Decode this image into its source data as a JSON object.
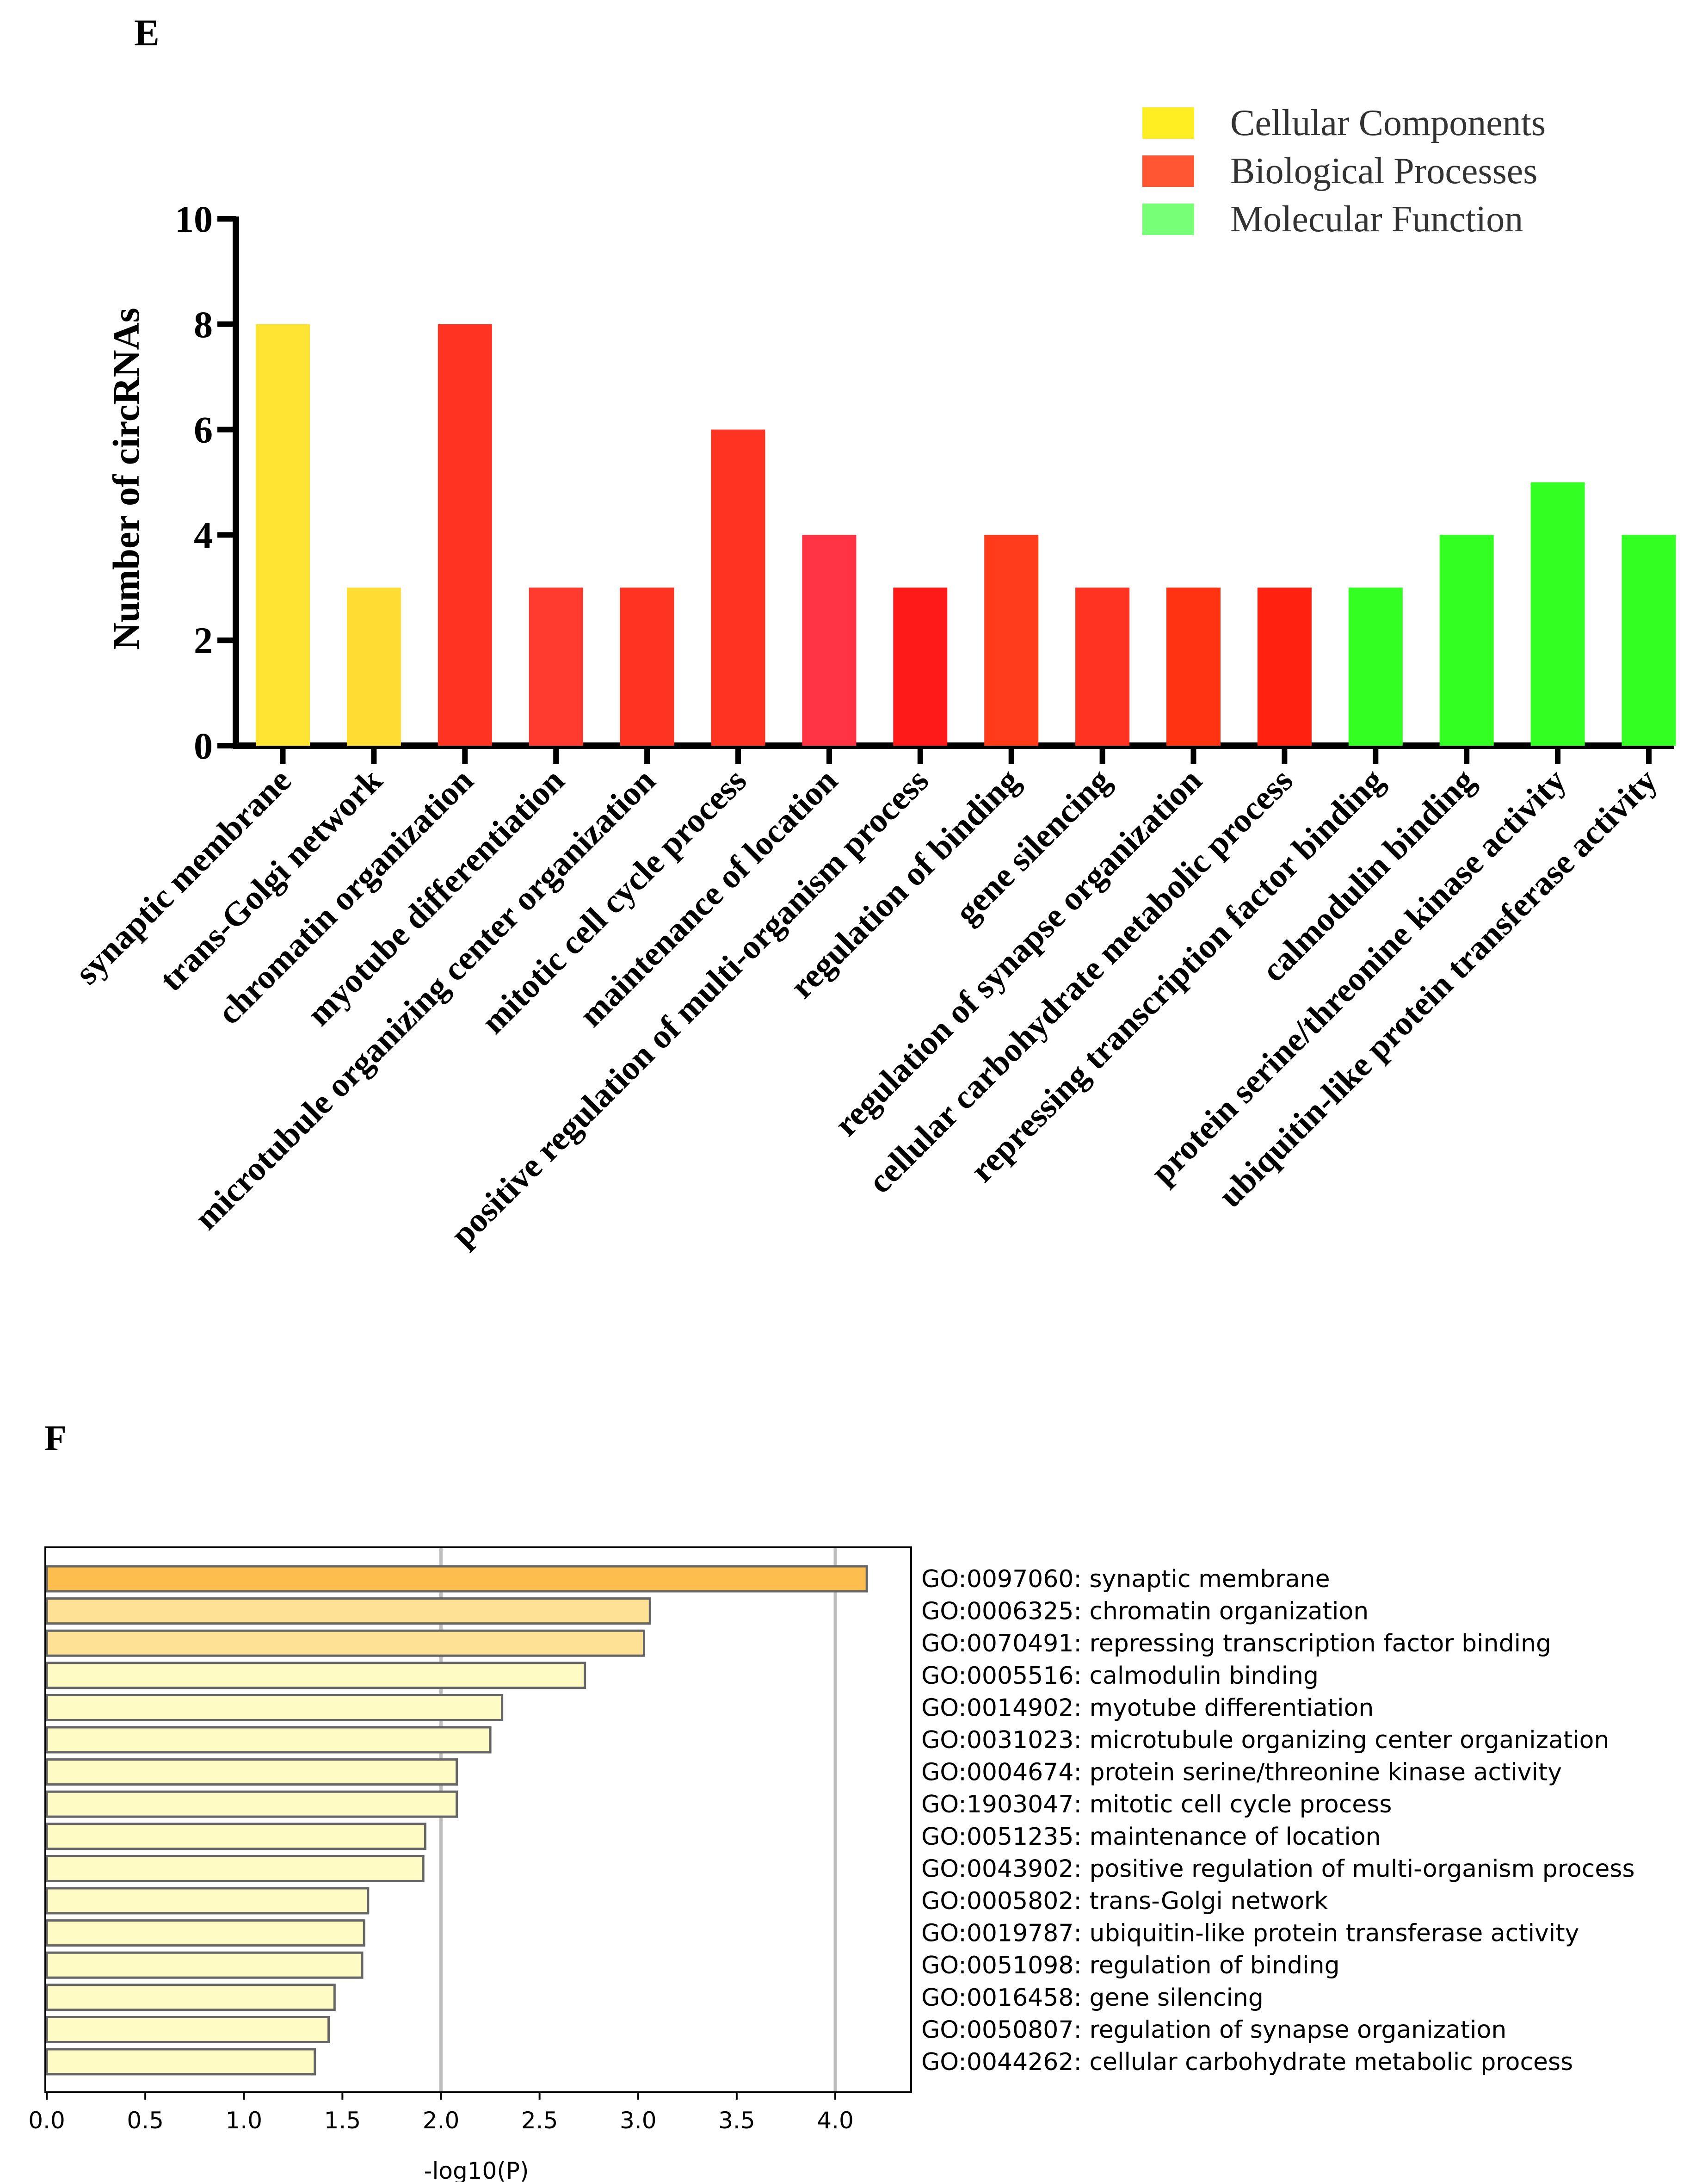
{
  "chart_data": [
    {
      "panel": "E",
      "type": "bar",
      "ylabel": "Number of circRNAs",
      "ylim": [
        0,
        10
      ],
      "yticks": [
        "0",
        "2",
        "4",
        "6",
        "8",
        "10"
      ],
      "legend": {
        "placement": "top-right",
        "items": [
          {
            "label": "Cellular Components",
            "color": "#FFEE22"
          },
          {
            "label": "Biological Processes",
            "color": "#FF5533"
          },
          {
            "label": "Molecular Function",
            "color": "#77FF77"
          }
        ]
      },
      "categories": [
        "synaptic membrane",
        "trans-Golgi network",
        "chromatin organization",
        "myotube differentiation",
        "microtubule organizing center organization",
        "mitotic cell cycle process",
        "maintenance of location",
        "positive regulation of multi-organism process",
        "regulation of binding",
        "gene silencing",
        "regulation of synapse organization",
        "cellular carbohydrate metabolic process",
        "repressing transcription factor binding",
        "calmodulin binding",
        "protein serine/threonine kinase activity",
        "ubiquitin-like protein transferase activity"
      ],
      "values": [
        8,
        3,
        8,
        3,
        3,
        6,
        4,
        3,
        4,
        3,
        3,
        3,
        3,
        4,
        5,
        4
      ],
      "colors": [
        "#FFE433",
        "#FFDD33",
        "#FF3322",
        "#FF3B30",
        "#FF3322",
        "#FF3322",
        "#FF3344",
        "#FF1A1A",
        "#FF3B1A",
        "#FF3322",
        "#FF3311",
        "#FF2211",
        "#33FF22",
        "#33FF22",
        "#33FF22",
        "#33FF22"
      ]
    },
    {
      "panel": "F",
      "type": "bar",
      "orientation": "horizontal",
      "xlabel": "-log10(P)",
      "xlim": [
        0,
        4.35
      ],
      "xticks": [
        "0.0",
        "0.5",
        "1.0",
        "1.5",
        "2.0",
        "2.5",
        "3.0",
        "3.5",
        "4.0"
      ],
      "gridlines_at": [
        2.0,
        4.0
      ],
      "labels": [
        "GO:0097060: synaptic membrane",
        "GO:0006325: chromatin organization",
        "GO:0070491: repressing transcription factor binding",
        "GO:0005516: calmodulin binding",
        "GO:0014902: myotube differentiation",
        "GO:0031023: microtubule organizing center organization",
        "GO:0004674: protein serine/threonine kinase activity",
        "GO:1903047: mitotic cell cycle process",
        "GO:0051235: maintenance of location",
        "GO:0043902: positive regulation of multi-organism process",
        "GO:0005802: trans-Golgi network",
        "GO:0019787: ubiquitin-like protein transferase activity",
        "GO:0051098: regulation of binding",
        "GO:0016458: gene silencing",
        "GO:0050807: regulation of synapse organization",
        "GO:0044262: cellular carbohydrate metabolic process"
      ],
      "values": [
        4.16,
        3.06,
        3.03,
        2.73,
        2.31,
        2.25,
        2.08,
        2.08,
        1.92,
        1.91,
        1.63,
        1.61,
        1.6,
        1.46,
        1.43,
        1.36
      ],
      "colors": [
        "#FDBE4E",
        "#FEE195",
        "#FEE195",
        "#FFFBC4",
        "#FFFBC4",
        "#FFFBC4",
        "#FFFBC4",
        "#FFFBC4",
        "#FFFBC4",
        "#FFFBC4",
        "#FFFBC4",
        "#FFFBC4",
        "#FFFBC4",
        "#FFFBC4",
        "#FFFBC4",
        "#FFFBC4"
      ]
    }
  ]
}
